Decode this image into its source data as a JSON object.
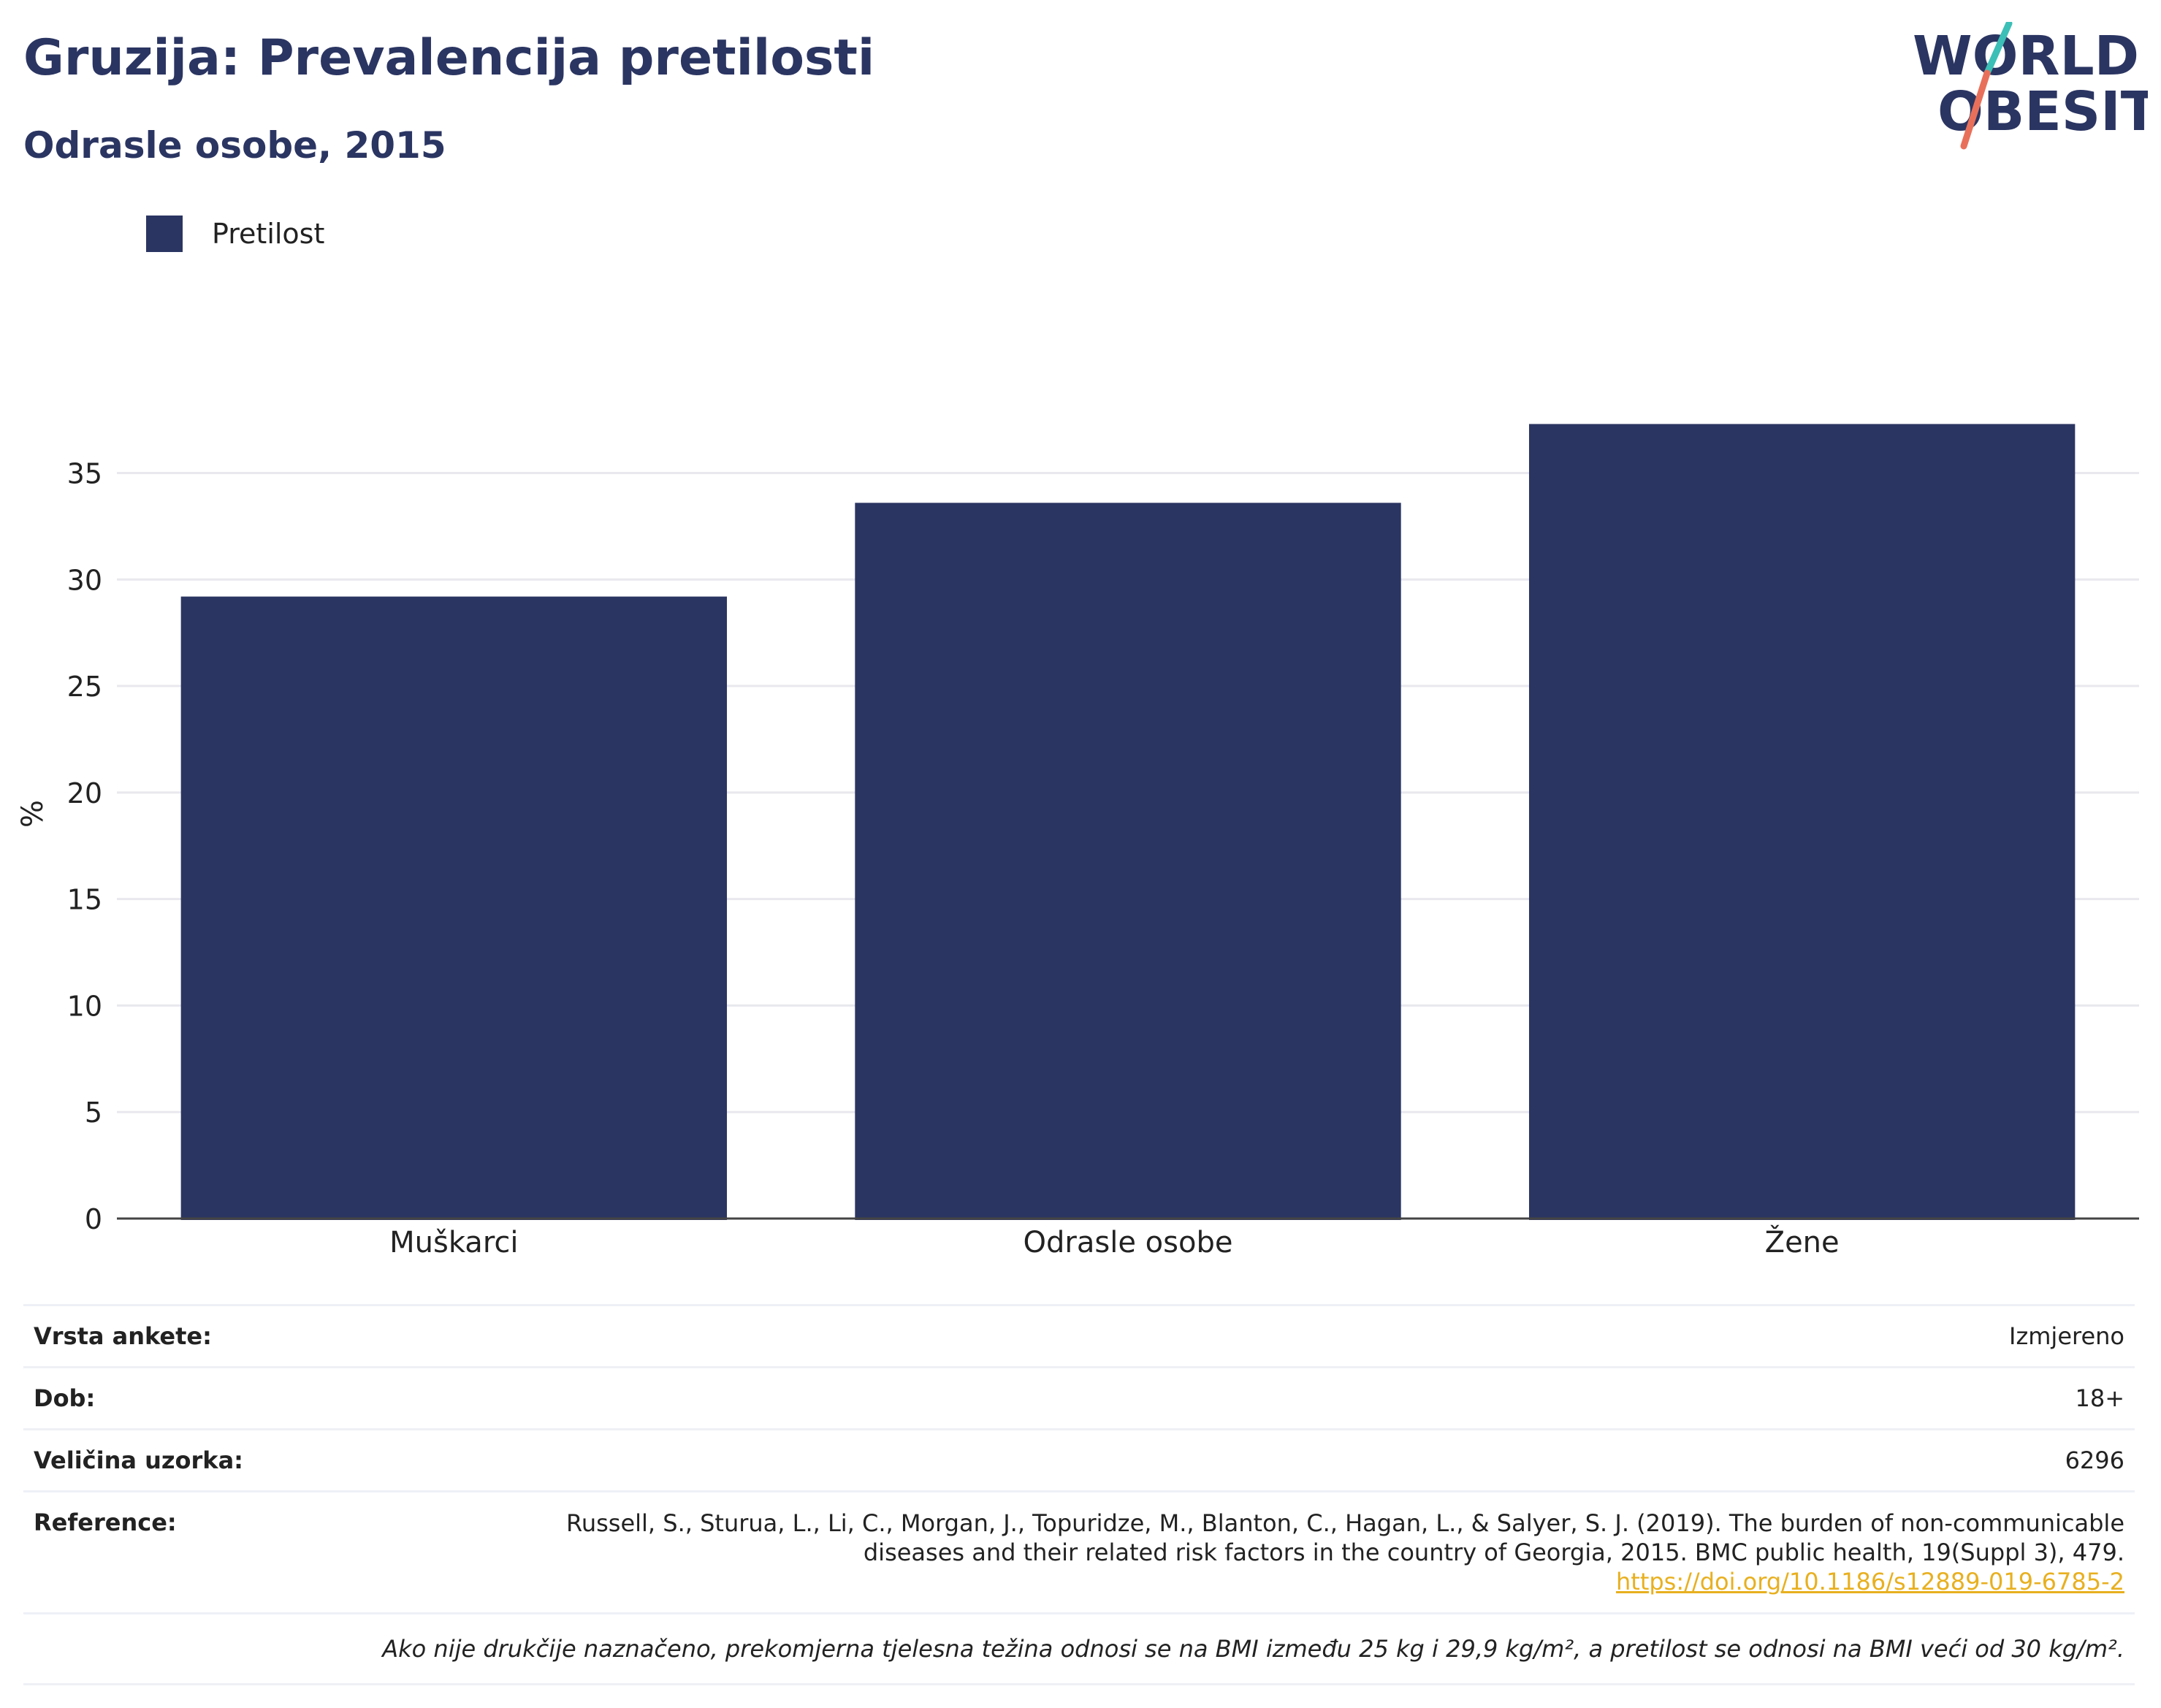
{
  "header": {
    "title": "Gruzija: Prevalencija pretilosti",
    "subtitle": "Odrasle osobe, 2015"
  },
  "logo": {
    "line1": "WORLD",
    "line2": "OBESITY",
    "colors": {
      "text": "#2b3562",
      "slash_top": "#3bbfb6",
      "slash_bottom": "#e8705a"
    }
  },
  "legend": {
    "label": "Pretilost",
    "color": "#2b3562"
  },
  "chart_data": {
    "type": "bar",
    "categories": [
      "Muškarci",
      "Odrasle osobe",
      "Žene"
    ],
    "series": [
      {
        "name": "Pretilost",
        "values": [
          29.2,
          33.6,
          37.3
        ]
      }
    ],
    "ylabel": "%",
    "ylim": [
      0,
      38
    ],
    "yticks": [
      0,
      5,
      10,
      15,
      20,
      25,
      30,
      35
    ],
    "grid": true,
    "legend_position": "top-left",
    "bar_color": "#2b3562"
  },
  "info": {
    "survey_type_label": "Vrsta ankete:",
    "survey_type_value": "Izmjereno",
    "age_label": "Dob:",
    "age_value": "18+",
    "sample_label": "Veličina uzorka:",
    "sample_value": "6296",
    "reference_label": "Reference:",
    "reference_line1": "Russell, S., Sturua, L., Li, C., Morgan, J., Topuridze, M., Blanton, C., Hagan, L., & Salyer, S. J. (2019). The burden of non-communicable",
    "reference_line2": "diseases and their related risk factors in the country of Georgia, 2015. BMC public health, 19(Suppl 3), 479.",
    "reference_link": "https://doi.org/10.1186/s12889-019-6785-2",
    "note": "Ako nije drukčije naznačeno, prekomjerna tjelesna težina odnosi se na BMI između 25 kg i 29,9 kg/m², a pretilost se odnosi na BMI veći od 30 kg/m²."
  }
}
